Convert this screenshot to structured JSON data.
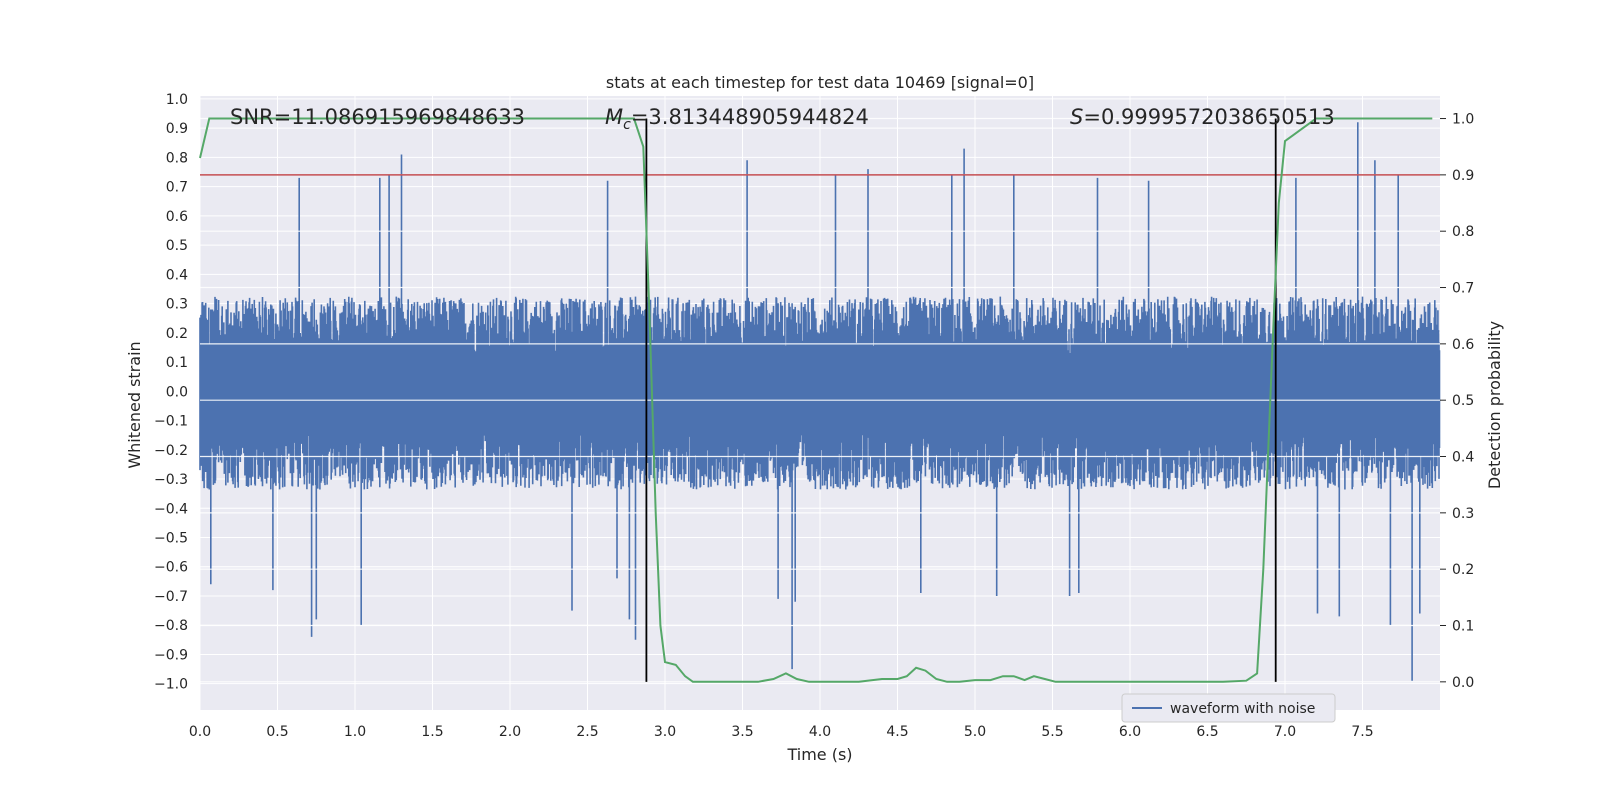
{
  "chart_data": {
    "type": "line",
    "title": "stats at each timestep for test data 10469 [signal=0]",
    "xlabel": "Time (s)",
    "ylabel_left": "Whitened strain",
    "ylabel_right": "Detection probability",
    "xlim": [
      0.0,
      8.0
    ],
    "ylim_left": [
      -1.09,
      1.01
    ],
    "ylim_right": [
      -0.05,
      1.04
    ],
    "x_ticks": [
      0.0,
      0.5,
      1.0,
      1.5,
      2.0,
      2.5,
      3.0,
      3.5,
      4.0,
      4.5,
      5.0,
      5.5,
      6.0,
      6.5,
      7.0,
      7.5
    ],
    "x_tick_labels": [
      "0.0",
      "0.5",
      "1.0",
      "1.5",
      "2.0",
      "2.5",
      "3.0",
      "3.5",
      "4.0",
      "4.5",
      "5.0",
      "5.5",
      "6.0",
      "6.5",
      "7.0",
      "7.5"
    ],
    "y_left_ticks": [
      1.0,
      0.9,
      0.8,
      0.7,
      0.6,
      0.5,
      0.4,
      0.3,
      0.2,
      0.1,
      0.0,
      -0.1,
      -0.2,
      -0.3,
      -0.4,
      -0.5,
      -0.6,
      -0.7,
      -0.8,
      -0.9,
      -1.0
    ],
    "y_left_tick_labels": [
      "1.0",
      "0.9",
      "0.8",
      "0.7",
      "0.6",
      "0.5",
      "0.4",
      "0.3",
      "0.2",
      "0.1",
      "0.0",
      "−0.1",
      "−0.2",
      "−0.3",
      "−0.4",
      "−0.5",
      "−0.6",
      "−0.7",
      "−0.8",
      "−0.9",
      "−1.0"
    ],
    "y_right_ticks": [
      1.0,
      0.9,
      0.8,
      0.7,
      0.6,
      0.5,
      0.4,
      0.3,
      0.2,
      0.1,
      0.0
    ],
    "y_right_tick_labels": [
      "1.0",
      "0.9",
      "0.8",
      "0.7",
      "0.6",
      "0.5",
      "0.4",
      "0.3",
      "0.2",
      "0.1",
      "0.0"
    ],
    "annotations": {
      "snr": "SNR=11.086915969848633",
      "mc_symbol": "M",
      "mc_subscript": "c",
      "mc_value": "=3.813448905944824",
      "s_symbol": "S",
      "s_value": "=0.9999572038650513"
    },
    "threshold_right": 0.9,
    "vertical_lines_x": [
      2.88,
      6.94
    ],
    "vertical_lines_right_range": [
      0.0,
      1.0
    ],
    "legend": {
      "label": "waveform with noise",
      "placement": "lower-right"
    },
    "waveform": {
      "name": "waveform with noise",
      "color": "#4c72b0",
      "duration": 8.0,
      "samples": 2400,
      "band_max": 0.27,
      "band_min": -0.28,
      "spikes": [
        {
          "x": 0.64,
          "y": 0.73
        },
        {
          "x": 1.16,
          "y": 0.73
        },
        {
          "x": 1.22,
          "y": 0.74
        },
        {
          "x": 1.3,
          "y": 0.81
        },
        {
          "x": 2.63,
          "y": 0.72
        },
        {
          "x": 3.53,
          "y": 0.79
        },
        {
          "x": 4.1,
          "y": 0.74
        },
        {
          "x": 4.31,
          "y": 0.76
        },
        {
          "x": 4.85,
          "y": 0.74
        },
        {
          "x": 4.93,
          "y": 0.83
        },
        {
          "x": 5.25,
          "y": 0.74
        },
        {
          "x": 5.79,
          "y": 0.73
        },
        {
          "x": 6.12,
          "y": 0.72
        },
        {
          "x": 7.07,
          "y": 0.73
        },
        {
          "x": 7.47,
          "y": 0.92
        },
        {
          "x": 7.58,
          "y": 0.79
        },
        {
          "x": 7.73,
          "y": 0.74
        },
        {
          "x": 0.07,
          "y": -0.66
        },
        {
          "x": 0.47,
          "y": -0.68
        },
        {
          "x": 0.72,
          "y": -0.84
        },
        {
          "x": 0.75,
          "y": -0.78
        },
        {
          "x": 1.04,
          "y": -0.8
        },
        {
          "x": 2.4,
          "y": -0.75
        },
        {
          "x": 2.69,
          "y": -0.64
        },
        {
          "x": 2.77,
          "y": -0.78
        },
        {
          "x": 2.81,
          "y": -0.85
        },
        {
          "x": 3.73,
          "y": -0.71
        },
        {
          "x": 3.82,
          "y": -0.95
        },
        {
          "x": 3.84,
          "y": -0.72
        },
        {
          "x": 4.65,
          "y": -0.69
        },
        {
          "x": 5.14,
          "y": -0.7
        },
        {
          "x": 5.61,
          "y": -0.7
        },
        {
          "x": 5.67,
          "y": -0.69
        },
        {
          "x": 7.21,
          "y": -0.76
        },
        {
          "x": 7.35,
          "y": -0.77
        },
        {
          "x": 7.68,
          "y": -0.8
        },
        {
          "x": 7.82,
          "y": -0.99
        },
        {
          "x": 7.87,
          "y": -0.76
        }
      ]
    },
    "detection_probability": {
      "color": "#55a868",
      "x": [
        0.0,
        0.06,
        0.5,
        1.0,
        1.5,
        2.0,
        2.5,
        2.8,
        2.86,
        2.9,
        2.94,
        2.97,
        3.0,
        3.07,
        3.13,
        3.18,
        3.25,
        3.35,
        3.5,
        3.6,
        3.7,
        3.78,
        3.85,
        3.93,
        4.0,
        4.1,
        4.25,
        4.4,
        4.5,
        4.56,
        4.62,
        4.68,
        4.75,
        4.82,
        4.9,
        5.0,
        5.1,
        5.18,
        5.25,
        5.32,
        5.38,
        5.45,
        5.52,
        5.6,
        5.8,
        6.0,
        6.3,
        6.6,
        6.75,
        6.82,
        6.86,
        6.92,
        6.96,
        7.0,
        7.05,
        7.1,
        7.15,
        7.2,
        7.3,
        7.5,
        7.7,
        7.95
      ],
      "y": [
        0.93,
        1.0,
        1.0,
        1.0,
        1.0,
        1.0,
        1.0,
        1.0,
        0.95,
        0.65,
        0.3,
        0.1,
        0.035,
        0.03,
        0.01,
        0.0,
        0.0,
        0.0,
        0.0,
        0.0,
        0.005,
        0.015,
        0.005,
        0.0,
        0.0,
        0.0,
        0.0,
        0.005,
        0.005,
        0.01,
        0.025,
        0.02,
        0.005,
        0.0,
        0.0,
        0.003,
        0.003,
        0.01,
        0.01,
        0.003,
        0.01,
        0.005,
        0.0,
        0.0,
        0.0,
        0.0,
        0.0,
        0.0,
        0.002,
        0.015,
        0.2,
        0.6,
        0.85,
        0.96,
        0.97,
        0.98,
        0.99,
        1.0,
        1.0,
        1.0,
        1.0,
        1.0
      ]
    },
    "threshold_color": "#c44e52",
    "vline_color": "#000000",
    "grid": true
  }
}
